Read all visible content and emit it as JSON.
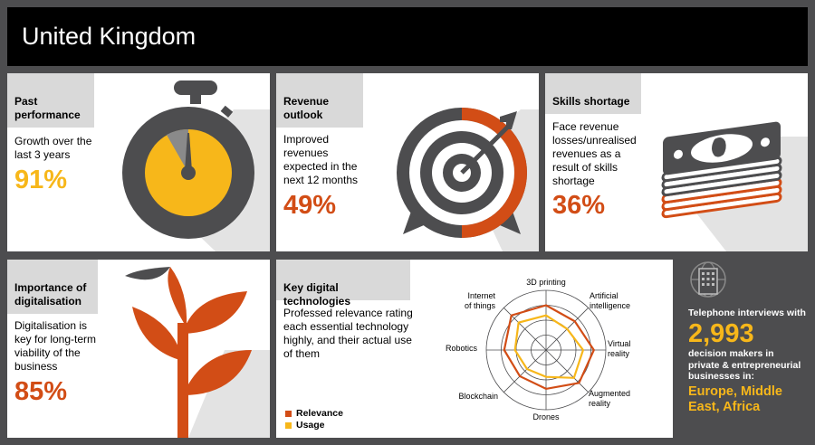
{
  "header": {
    "title": "United Kingdom"
  },
  "colors": {
    "accent_orange": "#d24d16",
    "accent_yellow": "#f7b71a",
    "dark": "#4d4d4f",
    "tab_gray": "#d9d9d9"
  },
  "panels": {
    "past": {
      "title_l1": "Past",
      "title_l2": "performance",
      "d1": "Growth over the",
      "d2": "last 3 years",
      "value": "91%",
      "icon": "stopwatch-icon"
    },
    "revenue": {
      "title_l1": "Revenue",
      "title_l2": "outlook",
      "d1": "Improved",
      "d2": "revenues",
      "d3": "expected in the",
      "d4": "next 12 months",
      "value": "49%",
      "icon": "target-icon"
    },
    "skills": {
      "title": "Skills shortage",
      "d1": "Face revenue",
      "d2": "losses/unrealised",
      "d3": "revenues as a",
      "d4": "result of skills",
      "d5": "shortage",
      "value": "36%",
      "icon": "money-stack-icon"
    },
    "digital": {
      "title_l1": "Importance of",
      "title_l2": "digitalisation",
      "d1": "Digitalisation is",
      "d2": "key for long-term",
      "d3": "viability of the",
      "d4": "business",
      "value": "85%",
      "icon": "plant-icon"
    },
    "tech": {
      "title": "Key digital technologies",
      "d1": "Professed relevance rating",
      "d2": "each essential technology",
      "d3": "highly, and their actual use",
      "d4": "of them"
    }
  },
  "chart_data": {
    "type": "radar",
    "categories": [
      "3D printing",
      "Artificial intelligence",
      "Virtual reality",
      "Augmented reality",
      "Drones",
      "Blockchain",
      "Robotics",
      "Internet of things"
    ],
    "series": [
      {
        "name": "Relevance",
        "color": "#d24d16",
        "values": [
          0.75,
          0.68,
          0.8,
          0.78,
          0.65,
          0.62,
          0.7,
          0.82
        ]
      },
      {
        "name": "Usage",
        "color": "#f7b71a",
        "values": [
          0.58,
          0.5,
          0.62,
          0.66,
          0.45,
          0.45,
          0.52,
          0.65
        ]
      }
    ],
    "labels": {
      "c0": "3D printing",
      "c1_l1": "Artificial",
      "c1_l2": "intelligence",
      "c2_l1": "Virtual",
      "c2_l2": "reality",
      "c3_l1": "Augmented",
      "c3_l2": "reality",
      "c4": "Drones",
      "c5": "Blockchain",
      "c6": "Robotics",
      "c7_l1": "Internet",
      "c7_l2": "of things"
    },
    "grid": true
  },
  "sidebar": {
    "icon": "building-globe-icon",
    "line1": "Telephone interviews with",
    "count": "2,993",
    "line2a": "decision makers in",
    "line2b": "private & entrepreneurial",
    "line2c": "businesses in:",
    "region_l1": "Europe, Middle",
    "region_l2": "East, Africa"
  }
}
